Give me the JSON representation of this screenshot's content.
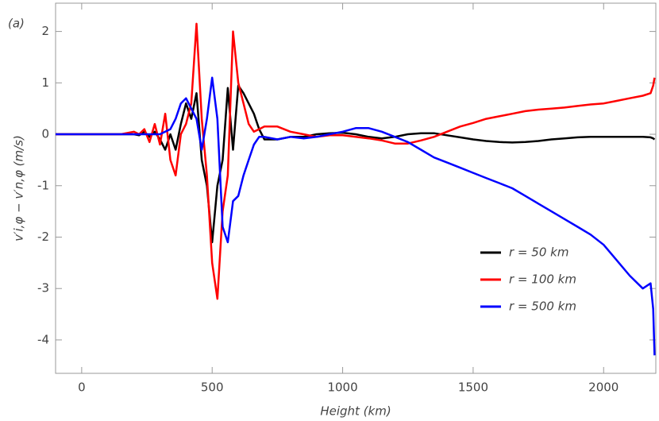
{
  "chart_data": {
    "type": "line",
    "panel_label": "(a)",
    "xlabel": "Height (km)",
    "ylabel": "v′i,φ − v′n,φ (m/s)",
    "xlim": [
      -100,
      2200
    ],
    "ylim": [
      -4.65,
      2.55
    ],
    "xticks": [
      0,
      500,
      1000,
      1500,
      2000
    ],
    "yticks": [
      -4,
      -3,
      -2,
      -1,
      0,
      1,
      2
    ],
    "legend": "lower right",
    "x": [
      -100,
      0,
      100,
      150,
      200,
      220,
      240,
      260,
      280,
      300,
      320,
      340,
      360,
      380,
      400,
      420,
      440,
      460,
      480,
      500,
      520,
      540,
      560,
      580,
      600,
      620,
      640,
      660,
      680,
      700,
      750,
      800,
      850,
      900,
      950,
      1000,
      1050,
      1100,
      1150,
      1200,
      1250,
      1300,
      1350,
      1400,
      1450,
      1500,
      1550,
      1600,
      1650,
      1700,
      1750,
      1800,
      1850,
      1900,
      1950,
      2000,
      2050,
      2100,
      2150,
      2180,
      2190,
      2195
    ],
    "series": [
      {
        "name": "r = 50 km",
        "color": "#000000",
        "values": [
          0,
          0,
          0,
          0,
          0,
          -0.02,
          0.05,
          -0.05,
          0.05,
          -0.1,
          -0.3,
          0,
          -0.3,
          0.2,
          0.6,
          0.3,
          0.8,
          -0.5,
          -1.0,
          -2.1,
          -1.0,
          -0.5,
          0.9,
          -0.3,
          0.95,
          0.8,
          0.6,
          0.4,
          0.1,
          -0.1,
          -0.1,
          -0.05,
          -0.05,
          0,
          0.02,
          0.03,
          0,
          -0.05,
          -0.08,
          -0.05,
          0,
          0.02,
          0.02,
          -0.02,
          -0.06,
          -0.1,
          -0.13,
          -0.15,
          -0.16,
          -0.15,
          -0.13,
          -0.1,
          -0.08,
          -0.06,
          -0.05,
          -0.05,
          -0.05,
          -0.05,
          -0.05,
          -0.06,
          -0.08,
          -0.1
        ]
      },
      {
        "name": "r = 100 km",
        "color": "#ff0000",
        "values": [
          0,
          0,
          0,
          0,
          0.05,
          0,
          0.1,
          -0.15,
          0.2,
          -0.2,
          0.4,
          -0.5,
          -0.8,
          0,
          0.2,
          0.6,
          2.15,
          0.3,
          -0.8,
          -2.5,
          -3.2,
          -1.5,
          -0.8,
          2.0,
          1.0,
          0.6,
          0.2,
          0.05,
          0.1,
          0.15,
          0.15,
          0.05,
          0,
          -0.05,
          -0.02,
          -0.02,
          -0.05,
          -0.08,
          -0.12,
          -0.18,
          -0.18,
          -0.12,
          -0.05,
          0.05,
          0.15,
          0.22,
          0.3,
          0.35,
          0.4,
          0.45,
          0.48,
          0.5,
          0.52,
          0.55,
          0.58,
          0.6,
          0.65,
          0.7,
          0.75,
          0.8,
          0.95,
          1.1
        ]
      },
      {
        "name": "r = 500 km",
        "color": "#0000ff",
        "values": [
          0,
          0,
          0,
          0,
          0,
          0,
          0,
          0,
          0,
          0,
          0.05,
          0.1,
          0.3,
          0.6,
          0.7,
          0.5,
          0.3,
          -0.3,
          0.3,
          1.1,
          0.3,
          -1.8,
          -2.1,
          -1.3,
          -1.2,
          -0.8,
          -0.5,
          -0.2,
          -0.05,
          -0.05,
          -0.1,
          -0.05,
          -0.08,
          -0.05,
          0,
          0.05,
          0.12,
          0.12,
          0.05,
          -0.05,
          -0.15,
          -0.3,
          -0.45,
          -0.55,
          -0.65,
          -0.75,
          -0.85,
          -0.95,
          -1.05,
          -1.2,
          -1.35,
          -1.5,
          -1.65,
          -1.8,
          -1.95,
          -2.15,
          -2.45,
          -2.75,
          -3.0,
          -2.9,
          -3.4,
          -4.3
        ]
      }
    ]
  }
}
